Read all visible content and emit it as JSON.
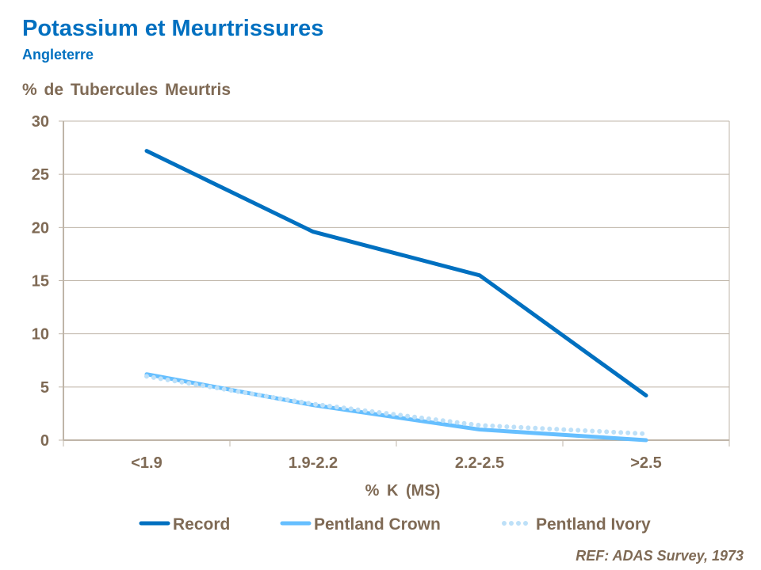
{
  "chart_data": {
    "type": "line",
    "title": "Potassium et Meurtrissures",
    "subtitle": "Angleterre",
    "ylabel": "% de Tubercules Meurtris",
    "xlabel": "% K (MS)",
    "categories": [
      "<1.9",
      "1.9-2.2",
      "2.2-2.5",
      ">2.5"
    ],
    "ylim": [
      0,
      30
    ],
    "yticks": [
      0,
      5,
      10,
      15,
      20,
      25,
      30
    ],
    "grid": true,
    "legend_position": "bottom",
    "series": [
      {
        "name": "Record",
        "values": [
          27.2,
          19.6,
          15.5,
          4.2
        ],
        "color": "#0070C0",
        "style": "solid"
      },
      {
        "name": "Pentland Crown",
        "values": [
          6.2,
          3.3,
          1.0,
          0.0
        ],
        "color": "#66BFFF",
        "style": "solid"
      },
      {
        "name": "Pentland Ivory",
        "values": [
          6.0,
          3.4,
          1.4,
          0.6
        ],
        "color": "#BDE0F8",
        "style": "dotted"
      }
    ],
    "annotation": "REF: ADAS Survey, 1973"
  }
}
